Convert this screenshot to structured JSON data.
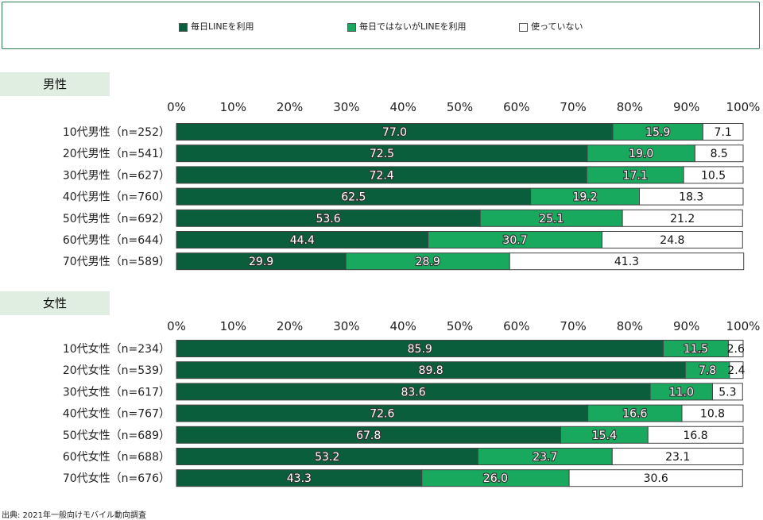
{
  "legend": [
    {
      "label": "毎日LINEを利用",
      "color": "#0a5e3b"
    },
    {
      "label": "毎日ではないがLINEを利用",
      "color": "#18a85e"
    },
    {
      "label": "使っていない",
      "color": "#ffffff"
    }
  ],
  "sections": {
    "male": "男性",
    "female": "女性"
  },
  "source": "出典: 2021年一般向けモバイル動向調査",
  "chart_data": [
    {
      "type": "bar",
      "orientation": "horizontal",
      "stacked": true,
      "xlim": [
        0,
        100
      ],
      "x_ticks": [
        "0%",
        "10%",
        "20%",
        "30%",
        "40%",
        "50%",
        "60%",
        "70%",
        "80%",
        "90%",
        "100%"
      ],
      "categories": [
        "10代男性（n=252）",
        "20代男性（n=541）",
        "30代男性（n=627）",
        "40代男性（n=760）",
        "50代男性（n=692）",
        "60代男性（n=644）",
        "70代男性（n=589）"
      ],
      "series": [
        {
          "name": "毎日LINEを利用",
          "color": "#0a5e3b",
          "values": [
            77.0,
            72.5,
            72.4,
            62.5,
            53.6,
            44.4,
            29.9
          ]
        },
        {
          "name": "毎日ではないがLINEを利用",
          "color": "#18a85e",
          "values": [
            15.9,
            19.0,
            17.1,
            19.2,
            25.1,
            30.7,
            28.9
          ]
        },
        {
          "name": "使っていない",
          "color": "#ffffff",
          "values": [
            7.1,
            8.5,
            10.5,
            18.3,
            21.2,
            24.8,
            41.3
          ]
        }
      ]
    },
    {
      "type": "bar",
      "orientation": "horizontal",
      "stacked": true,
      "xlim": [
        0,
        100
      ],
      "x_ticks": [
        "0%",
        "10%",
        "20%",
        "30%",
        "40%",
        "50%",
        "60%",
        "70%",
        "80%",
        "90%",
        "100%"
      ],
      "categories": [
        "10代女性（n=234）",
        "20代女性（n=539）",
        "30代女性（n=617）",
        "40代女性（n=767）",
        "50代女性（n=689）",
        "60代女性（n=688）",
        "70代女性（n=676）"
      ],
      "series": [
        {
          "name": "毎日LINEを利用",
          "color": "#0a5e3b",
          "values": [
            85.9,
            89.8,
            83.6,
            72.6,
            67.8,
            53.2,
            43.3
          ]
        },
        {
          "name": "毎日ではないがLINEを利用",
          "color": "#18a85e",
          "values": [
            11.5,
            7.8,
            11.0,
            16.6,
            15.4,
            23.7,
            26.0
          ]
        },
        {
          "name": "使っていない",
          "color": "#ffffff",
          "values": [
            2.6,
            2.4,
            5.3,
            10.8,
            16.8,
            23.1,
            30.6
          ]
        }
      ]
    }
  ]
}
